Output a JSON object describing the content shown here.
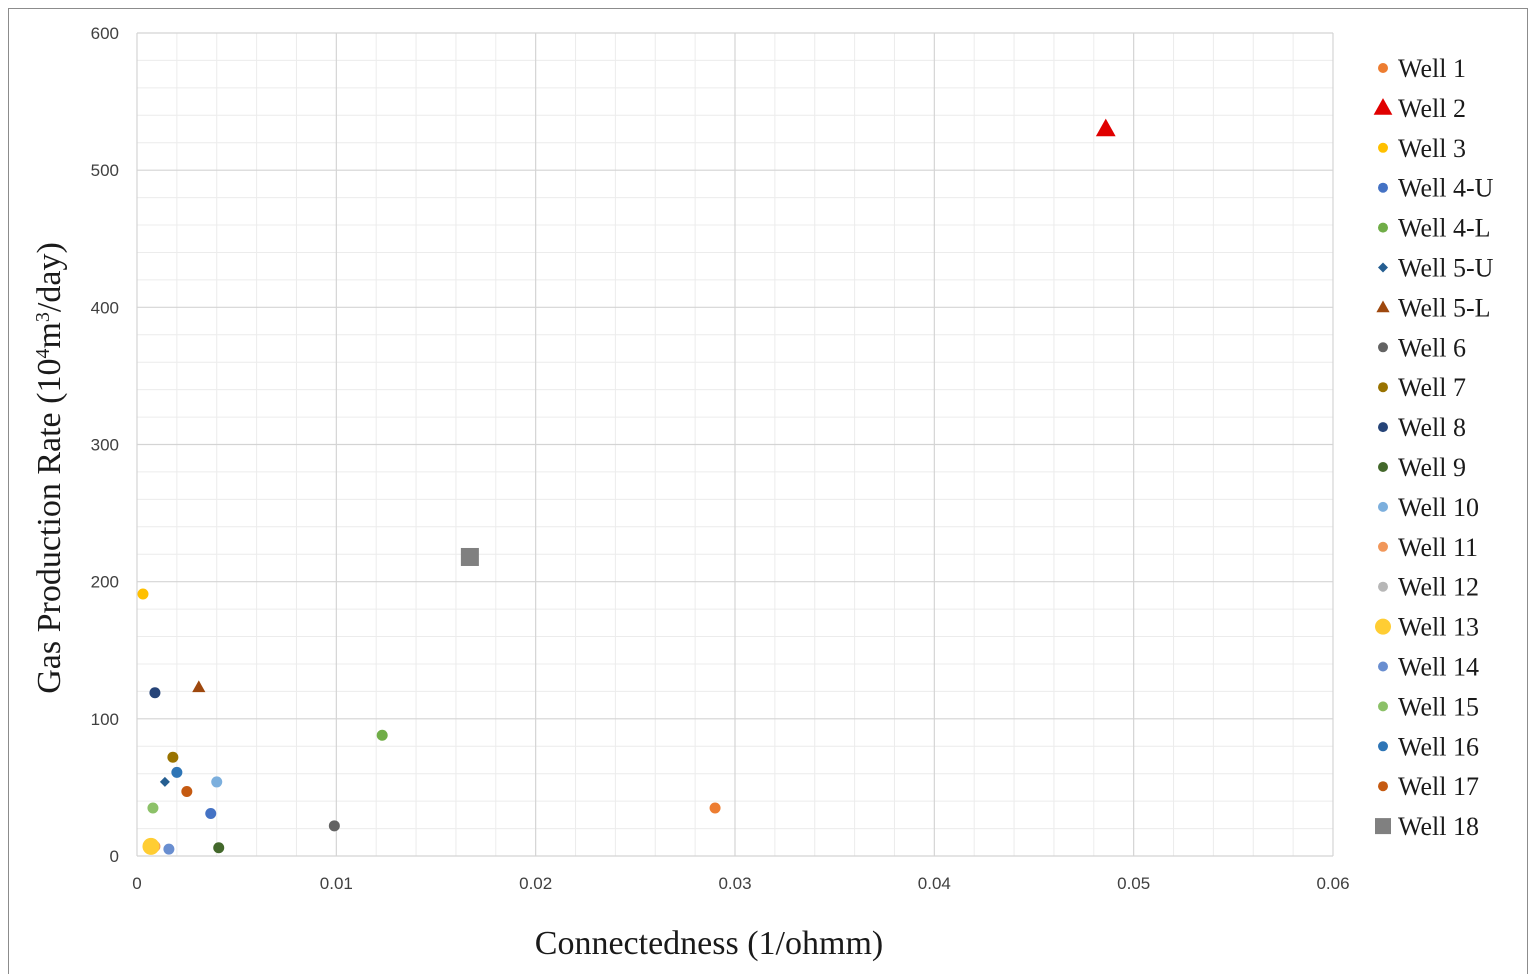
{
  "chart_data": {
    "type": "scatter",
    "xlabel": "Connectedness (1/ohmm)",
    "ylabel_parts": [
      "Gas Production Rate (10",
      "4",
      "m",
      "3",
      "/day)"
    ],
    "xlim": [
      0,
      0.06
    ],
    "ylim": [
      0,
      600
    ],
    "x_ticks": [
      "0",
      "0.01",
      "0.02",
      "0.03",
      "0.04",
      "0.05",
      "0.06"
    ],
    "y_ticks": [
      "0",
      "100",
      "200",
      "300",
      "400",
      "500",
      "600"
    ],
    "grid": true,
    "legend_position": "right",
    "series": [
      {
        "name": "Well 1",
        "marker": "circle",
        "color": "#ED7D31",
        "size": "small",
        "points": [
          [
            0.029,
            35
          ]
        ]
      },
      {
        "name": "Well 2",
        "marker": "triangle",
        "color": "#E00000",
        "size": "large",
        "points": [
          [
            0.0486,
            530
          ]
        ]
      },
      {
        "name": "Well 3",
        "marker": "circle",
        "color": "#FFC000",
        "size": "small",
        "points": [
          [
            0.0003,
            191
          ]
        ]
      },
      {
        "name": "Well 4-U",
        "marker": "circle",
        "color": "#4472C4",
        "size": "small",
        "points": [
          [
            0.0037,
            31
          ]
        ]
      },
      {
        "name": "Well 4-L",
        "marker": "circle",
        "color": "#70AD47",
        "size": "small",
        "points": [
          [
            0.0123,
            88
          ]
        ]
      },
      {
        "name": "Well 5-U",
        "marker": "diamond",
        "color": "#255E91",
        "size": "small",
        "points": [
          [
            0.0014,
            54
          ]
        ]
      },
      {
        "name": "Well 5-L",
        "marker": "triangle",
        "color": "#9E480E",
        "size": "small",
        "points": [
          [
            0.0031,
            123
          ]
        ]
      },
      {
        "name": "Well 6",
        "marker": "circle",
        "color": "#636363",
        "size": "small",
        "points": [
          [
            0.0099,
            22
          ]
        ]
      },
      {
        "name": "Well 7",
        "marker": "circle",
        "color": "#997300",
        "size": "small",
        "points": [
          [
            0.0018,
            72
          ]
        ]
      },
      {
        "name": "Well 8",
        "marker": "circle",
        "color": "#264478",
        "size": "small",
        "points": [
          [
            0.0009,
            119
          ]
        ]
      },
      {
        "name": "Well 9",
        "marker": "circle",
        "color": "#43682B",
        "size": "small",
        "points": [
          [
            0.0041,
            6
          ]
        ]
      },
      {
        "name": "Well 10",
        "marker": "circle",
        "color": "#7CAFDD",
        "size": "small",
        "points": [
          [
            0.004,
            54
          ]
        ]
      },
      {
        "name": "Well 11",
        "marker": "circle",
        "color": "#F1975A",
        "size": "small",
        "points": [
          [
            0.0009,
            7
          ]
        ]
      },
      {
        "name": "Well 12",
        "marker": "circle",
        "color": "#B7B7B7",
        "size": "small",
        "points": [
          [
            0.0006,
            7
          ]
        ]
      },
      {
        "name": "Well 13",
        "marker": "circle",
        "color": "#FFCD33",
        "size": "large",
        "points": [
          [
            0.0007,
            7
          ]
        ]
      },
      {
        "name": "Well 14",
        "marker": "circle",
        "color": "#698ED0",
        "size": "small",
        "points": [
          [
            0.0016,
            5
          ]
        ]
      },
      {
        "name": "Well 15",
        "marker": "circle",
        "color": "#8CC168",
        "size": "small",
        "points": [
          [
            0.0008,
            35
          ]
        ]
      },
      {
        "name": "Well 16",
        "marker": "circle",
        "color": "#2E75B6",
        "size": "small",
        "points": [
          [
            0.002,
            61
          ]
        ]
      },
      {
        "name": "Well 17",
        "marker": "circle",
        "color": "#C55A11",
        "size": "small",
        "points": [
          [
            0.0025,
            47
          ]
        ]
      },
      {
        "name": "Well 18",
        "marker": "square",
        "color": "#808080",
        "size": "large",
        "points": [
          [
            0.0167,
            218
          ]
        ]
      }
    ]
  }
}
